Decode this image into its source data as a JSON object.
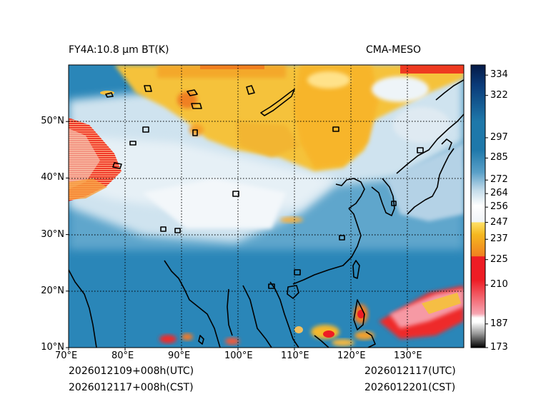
{
  "title_left": "FY4A:10.8 µm BT(K)",
  "title_right": "CMA-MESO",
  "footer": {
    "init_utc": "2026012109+008h(UTC)",
    "init_cst": "2026012117+008h(CST)",
    "valid_utc": "2026012117(UTC)",
    "valid_cst": "2026012201(CST)"
  },
  "map": {
    "lon_range": [
      70,
      140
    ],
    "lat_range": [
      10,
      60
    ],
    "x_ticks": [
      {
        "value": 70,
        "label": "70°E"
      },
      {
        "value": 80,
        "label": "80°E"
      },
      {
        "value": 90,
        "label": "90°E"
      },
      {
        "value": 100,
        "label": "100°E"
      },
      {
        "value": 110,
        "label": "110°E"
      },
      {
        "value": 120,
        "label": "120°E"
      },
      {
        "value": 130,
        "label": "130°E"
      }
    ],
    "y_ticks": [
      {
        "value": 10,
        "label": "10°N"
      },
      {
        "value": 20,
        "label": "20°N"
      },
      {
        "value": 30,
        "label": "30°N"
      },
      {
        "value": 40,
        "label": "40°N"
      },
      {
        "value": 50,
        "label": "50°N"
      }
    ]
  },
  "colorbar": {
    "min": 173,
    "max": 340,
    "ticks": [
      173,
      187,
      210,
      225,
      237,
      247,
      256,
      264,
      272,
      285,
      297,
      322,
      334
    ],
    "tick_labels": [
      "173",
      "187",
      "210",
      "225",
      "237",
      "247",
      "256",
      "264",
      "272",
      "285",
      "297",
      "322",
      "334"
    ],
    "colors": {
      "black": "#000000",
      "gray": "#9a9a9a",
      "white": "#ffffff",
      "pink": "#f7a6b2",
      "red": "#ee1c24",
      "orange": "#f08020",
      "gold": "#f5b820",
      "yellow": "#ffe066",
      "pale": "#f0f4f8",
      "lightblue": "#c4dcea",
      "skyblue": "#5aa0c8",
      "steel": "#1e78aa",
      "navy": "#0a3a78",
      "darknavy": "#051a46"
    }
  }
}
